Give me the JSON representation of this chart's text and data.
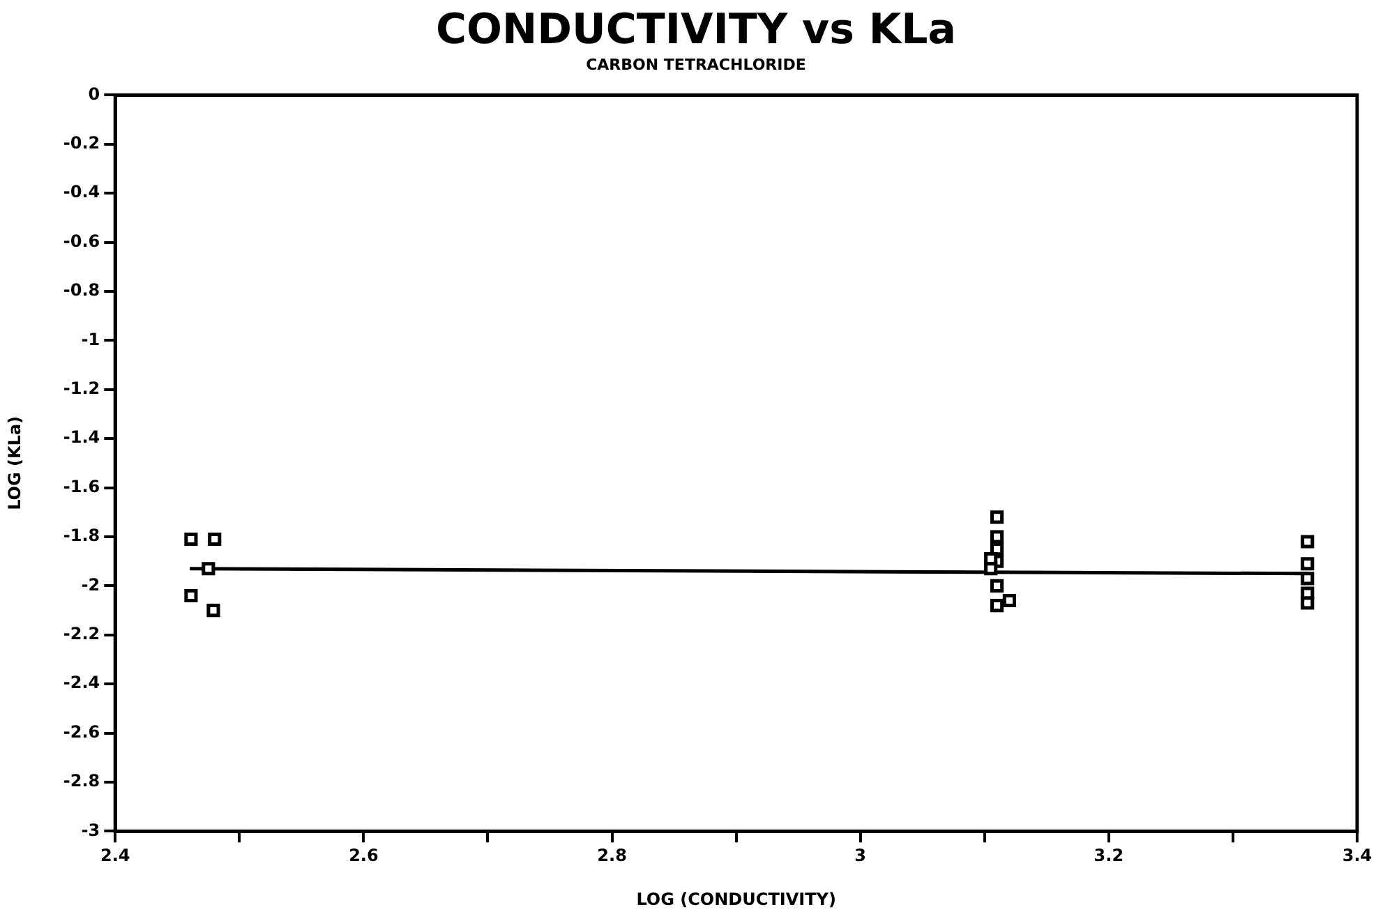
{
  "chart_data": {
    "type": "scatter",
    "title": "CONDUCTIVITY vs KLa",
    "subtitle": "CARBON TETRACHLORIDE",
    "xlabel": "LOG (CONDUCTIVITY)",
    "ylabel": "LOG (KLa)",
    "xlim": [
      2.4,
      3.4
    ],
    "ylim": [
      -3,
      0
    ],
    "xticks": [
      2.4,
      {
        "value": 2.5,
        "label": null
      },
      2.6,
      {
        "value": 2.7,
        "label": null
      },
      2.8,
      {
        "value": 2.9,
        "label": null
      },
      3,
      {
        "value": 3.1,
        "label": null
      },
      3.2,
      {
        "value": 3.3,
        "label": null
      },
      3.4
    ],
    "yticks": [
      0,
      -0.2,
      -0.4,
      -0.6,
      -0.8,
      -1,
      -1.2,
      -1.4,
      -1.6,
      -1.8,
      -2,
      -2.2,
      -2.4,
      -2.6,
      -2.8,
      -3
    ],
    "grid": false,
    "legend": false,
    "marker": "square",
    "series": [
      {
        "color": "#000000",
        "x": [
          2.461,
          2.48,
          2.461,
          2.479,
          2.475,
          3.11,
          3.11,
          3.11,
          3.11,
          3.11,
          3.11,
          3.105,
          3.105,
          3.12,
          3.36,
          3.36,
          3.36,
          3.36,
          3.36
        ],
        "values": [
          -1.81,
          -1.81,
          -2.04,
          -2.1,
          -1.93,
          -1.72,
          -1.8,
          -1.85,
          -1.9,
          -2,
          -2.08,
          -1.89,
          -1.93,
          -2.06,
          -1.82,
          -1.91,
          -1.97,
          -2.03,
          -2.07
        ]
      },
      {
        "type": "line",
        "color": "#000000",
        "marker": "none",
        "x": [
          2.46,
          3.36
        ],
        "values": [
          -1.93,
          -1.95
        ]
      }
    ]
  }
}
